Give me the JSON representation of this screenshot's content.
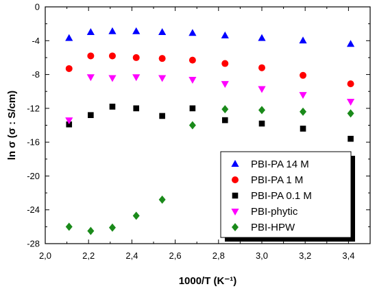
{
  "chart_data": {
    "type": "scatter",
    "xlabel": "1000/T (K⁻¹)",
    "ylabel": "ln σ (σ : S/cm)",
    "xlim": [
      2.0,
      3.5
    ],
    "ylim": [
      -28,
      0
    ],
    "x_ticks": [
      "2,0",
      "2,2",
      "2,4",
      "2,6",
      "2,8",
      "3,0",
      "3,2",
      "3,4"
    ],
    "x_tick_values": [
      2.0,
      2.2,
      2.4,
      2.6,
      2.8,
      3.0,
      3.2,
      3.4
    ],
    "y_ticks": [
      "0",
      "-4",
      "-8",
      "-12",
      "-16",
      "-20",
      "-24",
      "-28"
    ],
    "y_tick_values": [
      0,
      -4,
      -8,
      -12,
      -16,
      -20,
      -24,
      -28
    ],
    "grid": false,
    "legend_position": "bottom-right",
    "series": [
      {
        "name": "PBI-PA 14 M",
        "marker": "triangle-up",
        "color": "#0000ff",
        "x": [
          2.11,
          2.21,
          2.31,
          2.42,
          2.54,
          2.68,
          2.83,
          3.0,
          3.19,
          3.41
        ],
        "y": [
          -3.7,
          -3.0,
          -2.9,
          -2.9,
          -3.0,
          -3.1,
          -3.4,
          -3.7,
          -4.0,
          -4.4
        ]
      },
      {
        "name": "PBI-PA 1 M",
        "marker": "circle",
        "color": "#ff0000",
        "x": [
          2.11,
          2.21,
          2.31,
          2.42,
          2.54,
          2.68,
          2.83,
          3.0,
          3.19,
          3.41
        ],
        "y": [
          -7.3,
          -5.8,
          -5.8,
          -6.0,
          -6.1,
          -6.3,
          -6.7,
          -7.2,
          -8.1,
          -9.1
        ]
      },
      {
        "name": "PBI-PA 0.1 M",
        "marker": "square",
        "color": "#000000",
        "x": [
          2.11,
          2.21,
          2.31,
          2.42,
          2.54,
          2.68,
          2.83,
          3.0,
          3.19,
          3.41
        ],
        "y": [
          -13.9,
          -12.8,
          -11.8,
          -12.0,
          -12.9,
          -12.0,
          -13.4,
          -13.8,
          -14.4,
          -15.6
        ]
      },
      {
        "name": "PBI-phytic",
        "marker": "triangle-down",
        "color": "#ff00ff",
        "x": [
          2.11,
          2.21,
          2.31,
          2.42,
          2.54,
          2.68,
          2.83,
          3.0,
          3.19,
          3.41
        ],
        "y": [
          -13.4,
          -8.3,
          -8.4,
          -8.3,
          -8.4,
          -8.6,
          -9.1,
          -9.7,
          -10.4,
          -11.2
        ]
      },
      {
        "name": "PBI-HPW",
        "marker": "diamond",
        "color": "#1a8a1a",
        "x": [
          2.11,
          2.21,
          2.31,
          2.42,
          2.54,
          2.68,
          2.83,
          3.0,
          3.19,
          3.41
        ],
        "y": [
          -26.0,
          -26.5,
          -26.1,
          -24.7,
          -22.8,
          -14.0,
          -12.1,
          -12.2,
          -12.4,
          -12.6
        ]
      }
    ]
  }
}
